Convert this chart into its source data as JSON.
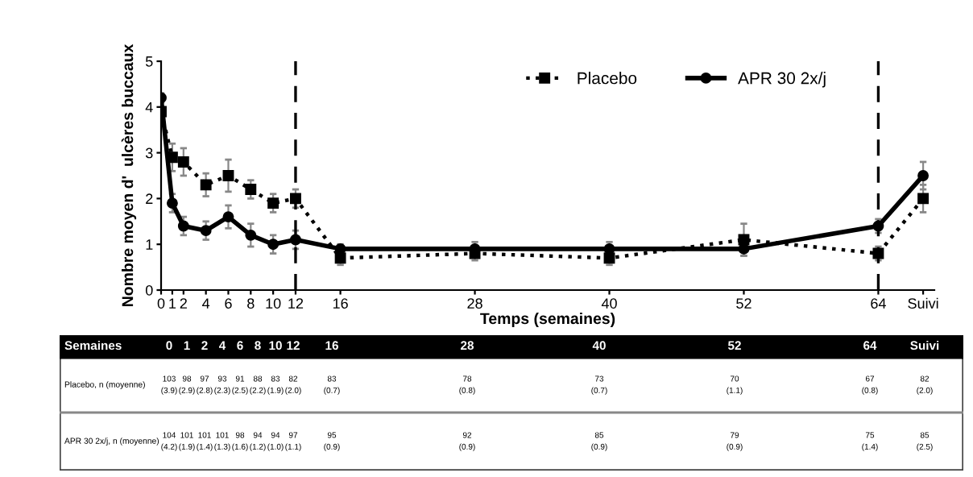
{
  "chart_data": [
    {
      "type": "line",
      "xlabel": "Temps (semaines)",
      "ylabel": "Nombre moyen d'  ulcères buccaux",
      "x": [
        0,
        1,
        2,
        4,
        6,
        8,
        10,
        12,
        16,
        28,
        40,
        52,
        64,
        68
      ],
      "xlim": [
        0,
        69
      ],
      "xticks": [
        0,
        1,
        2,
        4,
        6,
        8,
        10,
        12,
        16,
        28,
        40,
        52,
        64,
        {
          "value": 68,
          "label": "Suivi"
        }
      ],
      "ylim": [
        0,
        5
      ],
      "yticks": [
        0,
        1,
        2,
        3,
        4,
        5
      ],
      "series": [
        {
          "name": "Placebo",
          "color": "#000000",
          "marker": "square",
          "line_style": "dotted",
          "values": [
            3.9,
            2.9,
            2.8,
            2.3,
            2.5,
            2.2,
            1.9,
            2.0,
            0.7,
            0.8,
            0.7,
            1.1,
            0.8,
            2.0
          ],
          "errors": [
            0.1,
            0.3,
            0.3,
            0.25,
            0.35,
            0.2,
            0.2,
            0.2,
            0.15,
            0.15,
            0.15,
            0.35,
            0.15,
            0.3
          ]
        },
        {
          "name": "APR 30 2x/j",
          "color": "#000000",
          "marker": "circle",
          "line_style": "solid",
          "values": [
            4.2,
            1.9,
            1.4,
            1.3,
            1.6,
            1.2,
            1.0,
            1.1,
            0.9,
            0.9,
            0.9,
            0.9,
            1.4,
            2.5
          ],
          "errors": [
            0.1,
            0.2,
            0.2,
            0.2,
            0.25,
            0.25,
            0.2,
            0.2,
            0.1,
            0.15,
            0.15,
            0.15,
            0.15,
            0.3
          ]
        }
      ],
      "ref_lines": [
        {
          "axis": "x",
          "value": 12,
          "line_style": "dashed",
          "color": "#000000"
        },
        {
          "axis": "x",
          "value": 64,
          "line_style": "dashed",
          "color": "#000000"
        }
      ],
      "legend": "top right",
      "grid": false
    },
    {
      "type": "other",
      "annotations": [
        "Semaines",
        "0",
        "1",
        "2",
        "4",
        "6",
        "8",
        "10",
        "12",
        "16",
        "28",
        "40",
        "52",
        "64",
        "Suivi",
        "Placebo, n (moyenne)",
        "103\n(3.9)",
        "98\n(2.9)",
        "97\n(2.8)",
        "93\n(2.3)",
        "91\n(2.5)",
        "88\n(2.2)",
        "83\n(1.9)",
        "82\n(2.0)",
        "83\n(0.7)",
        "78\n(0.8)",
        "73\n(0.7)",
        "70\n(1.1)",
        "67\n(0.8)",
        "82\n(2.0)",
        "APR 30 2x/j, n (moyenne)",
        "104\n(4.2)",
        "101\n(1.9)",
        "101\n(1.4)",
        "101\n(1.3)",
        "98\n(1.6)",
        "94\n(1.2)",
        "94\n(1.0)",
        "97\n(1.1)",
        "95\n(0.9)",
        "92\n(0.9)",
        "85\n(0.9)",
        "79\n(0.9)",
        "75\n(1.4)",
        "85\n(2.5)"
      ]
    }
  ]
}
